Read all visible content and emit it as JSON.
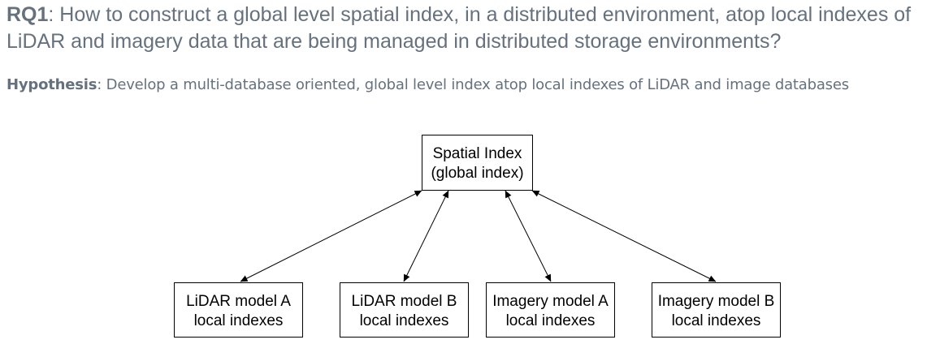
{
  "question": {
    "label": "RQ1",
    "text": ": How to construct a global level spatial index, in a distributed environment, atop local indexes of LiDAR and imagery data that are being managed in distributed storage environments?"
  },
  "hypothesis": {
    "label": "Hypothesis",
    "text": ": Develop a multi-database oriented, global level index atop local indexes of LiDAR and image databases"
  },
  "diagram": {
    "root": {
      "line1": "Spatial Index",
      "line2": "(global index)"
    },
    "children": [
      {
        "line1": "LiDAR model A",
        "line2": "local indexes"
      },
      {
        "line1": "LiDAR model B",
        "line2": "local indexes"
      },
      {
        "line1": "Imagery model A",
        "line2": "local indexes"
      },
      {
        "line1": "Imagery model B",
        "line2": "local indexes"
      }
    ],
    "edges": "bidirectional",
    "stroke_color": "#000000"
  }
}
